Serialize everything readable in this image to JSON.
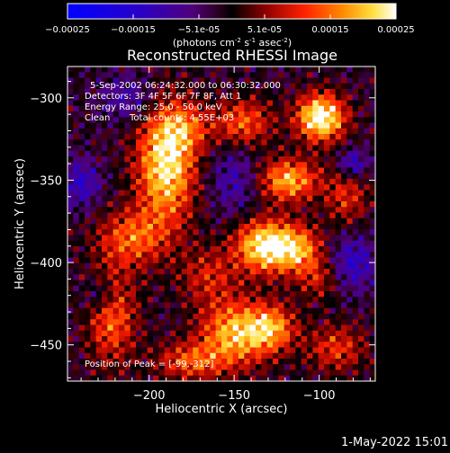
{
  "chart_data": {
    "type": "heatmap",
    "title": "Reconstructed RHESSI Image",
    "xlabel": "Heliocentric X (arcsec)",
    "ylabel": "Heliocentric Y (arcsec)",
    "xlim": [
      -248,
      -67
    ],
    "ylim": [
      -472,
      -281
    ],
    "x_ticks": [
      -200,
      -150,
      -100
    ],
    "y_ticks": [
      -300,
      -350,
      -400,
      -450
    ],
    "colorbar": {
      "range": [
        -0.00025,
        0.00025
      ],
      "tick_labels": [
        "-0.00025",
        "-0.00015",
        "-5.1e-05",
        "5.1e-05",
        "0.00015",
        "0.00025"
      ],
      "label": "(photons cm",
      "label_sup1": "-2",
      "label_mid": " s",
      "label_sup2": "-1",
      "label_end": " asec",
      "label_sup3": "-2",
      "label_close": ")"
    },
    "annotations": {
      "time_range": "5-Sep-2002 06:24:32.000 to 06:30:32.000",
      "detectors": "Detectors: 3F 4F 5F 6F 7F 8F, Att 1",
      "energy": "Energy Range: 25.0 - 50.0 keV",
      "algorithm": "Clean",
      "counts": "Total counts: 4.55E+03",
      "peak": "Position of Peak = [-99,-312]"
    },
    "peak_xy": [
      -99,
      -312
    ],
    "blobs": [
      {
        "x": -190,
        "y": -340,
        "sx": 12,
        "sy": 25,
        "a": 0.00026
      },
      {
        "x": -178,
        "y": -318,
        "sx": 10,
        "sy": 10,
        "a": 0.0001
      },
      {
        "x": -210,
        "y": -385,
        "sx": 14,
        "sy": 12,
        "a": 0.00015
      },
      {
        "x": -222,
        "y": -432,
        "sx": 10,
        "sy": 20,
        "a": 0.00016
      },
      {
        "x": -165,
        "y": -408,
        "sx": 12,
        "sy": 12,
        "a": 0.0001
      },
      {
        "x": -132,
        "y": -390,
        "sx": 12,
        "sy": 11,
        "a": 0.00027
      },
      {
        "x": -112,
        "y": -392,
        "sx": 10,
        "sy": 10,
        "a": 0.00017
      },
      {
        "x": -118,
        "y": -350,
        "sx": 12,
        "sy": 9,
        "a": 0.00021
      },
      {
        "x": -99,
        "y": -312,
        "sx": 10,
        "sy": 10,
        "a": 0.00029
      },
      {
        "x": -145,
        "y": -315,
        "sx": 12,
        "sy": 10,
        "a": 0.00015
      },
      {
        "x": -84,
        "y": -360,
        "sx": 9,
        "sy": 12,
        "a": 0.00011
      },
      {
        "x": -150,
        "y": -443,
        "sx": 14,
        "sy": 14,
        "a": 0.00021
      },
      {
        "x": -128,
        "y": -440,
        "sx": 10,
        "sy": 10,
        "a": 0.00018
      },
      {
        "x": -176,
        "y": -460,
        "sx": 14,
        "sy": 8,
        "a": 0.00014
      },
      {
        "x": -90,
        "y": -452,
        "sx": 12,
        "sy": 10,
        "a": 0.00012
      },
      {
        "x": -100,
        "y": -410,
        "sx": 9,
        "sy": 9,
        "a": 9e-05
      },
      {
        "x": -240,
        "y": -352,
        "sx": 8,
        "sy": 10,
        "a": -0.00012
      },
      {
        "x": -212,
        "y": -300,
        "sx": 12,
        "sy": 10,
        "a": -9e-05
      },
      {
        "x": -150,
        "y": -350,
        "sx": 10,
        "sy": 14,
        "a": -9e-05
      },
      {
        "x": -80,
        "y": -400,
        "sx": 10,
        "sy": 12,
        "a": -0.00012
      },
      {
        "x": -228,
        "y": -420,
        "sx": 7,
        "sy": 8,
        "a": -0.0001
      },
      {
        "x": -80,
        "y": -340,
        "sx": 6,
        "sy": 6,
        "a": -0.00013
      }
    ]
  },
  "footer": {
    "datetime": "1-May-2022 15:01"
  }
}
